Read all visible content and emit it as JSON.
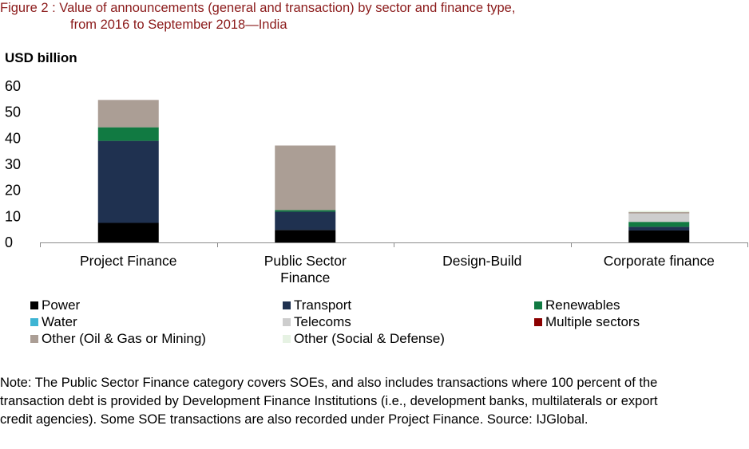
{
  "figure": {
    "title_line1": "Figure 2 : Value of announcements (general and transaction) by sector and finance type,",
    "title_line2": "from 2016 to September 2018—India",
    "unit_label": "USD billion",
    "note": "Note: The Public Sector Finance category covers SOEs, and also includes transactions where 100 percent of the transaction debt is provided by Development Finance Institutions (i.e., development banks, multilaterals or export credit agencies). Some SOE transactions are also recorded under Project Finance. Source: IJGlobal."
  },
  "chart_data": {
    "type": "bar",
    "stacked": true,
    "ylabel": "USD billion",
    "ylim": [
      0,
      60
    ],
    "yticks": [
      0,
      10,
      20,
      30,
      40,
      50,
      60
    ],
    "grid": false,
    "legend_position": "bottom",
    "categories": [
      "Project Finance",
      "Public Sector Finance",
      "Design-Build",
      "Corporate finance"
    ],
    "category_lines": [
      [
        "Project Finance"
      ],
      [
        "Public Sector",
        "Finance"
      ],
      [
        "Design-Build"
      ],
      [
        "Corporate finance"
      ]
    ],
    "series": [
      {
        "name": "Power",
        "color": "#000000",
        "values": [
          7.5,
          4.8,
          0,
          4.6
        ]
      },
      {
        "name": "Transport",
        "color": "#1f3150",
        "values": [
          31.5,
          7.0,
          0,
          1.4
        ]
      },
      {
        "name": "Renewables",
        "color": "#117a42",
        "values": [
          5.2,
          0.6,
          0,
          1.9
        ]
      },
      {
        "name": "Water",
        "color": "#3eb4d3",
        "values": [
          0,
          0,
          0,
          0
        ]
      },
      {
        "name": "Telecoms",
        "color": "#cdcdcd",
        "values": [
          0,
          0,
          0,
          3.2
        ]
      },
      {
        "name": "Multiple sectors",
        "color": "#8b0000",
        "values": [
          0,
          0,
          0,
          0
        ]
      },
      {
        "name": "Other (Oil & Gas or Mining)",
        "color": "#ab9e95",
        "values": [
          10.5,
          24.8,
          0,
          0.6
        ]
      },
      {
        "name": "Other (Social & Defense)",
        "color": "#e6f2e3",
        "values": [
          0,
          0,
          0,
          0.4
        ]
      }
    ]
  }
}
